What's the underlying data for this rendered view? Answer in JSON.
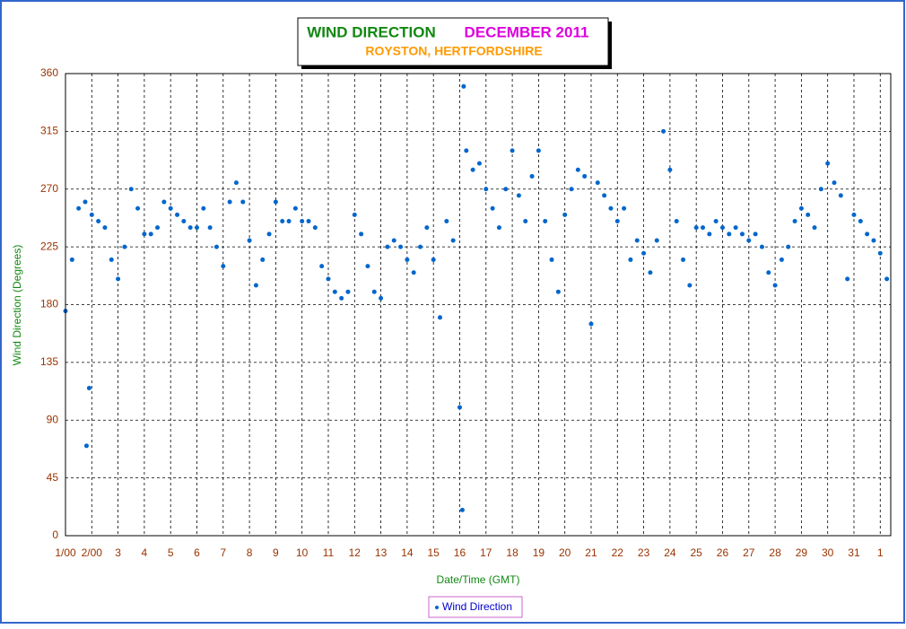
{
  "chart_data": {
    "type": "scatter",
    "title": "WIND DIRECTION",
    "title_colored": "DECEMBER 2011",
    "subtitle": "ROYSTON, HERTFORDSHIRE",
    "xlabel": "Date/Time (GMT)",
    "ylabel": "Wind Direction (Degrees)",
    "grid": true,
    "legend": "bottom",
    "xlim": [
      1,
      32.4
    ],
    "ylim": [
      0,
      360
    ],
    "yticks": [
      0,
      45,
      90,
      135,
      180,
      225,
      270,
      315,
      360
    ],
    "xticks": [
      {
        "value": 1,
        "label": "1/00"
      },
      {
        "value": 2,
        "label": "2/00"
      },
      3,
      4,
      5,
      6,
      7,
      8,
      9,
      10,
      11,
      12,
      13,
      14,
      15,
      16,
      17,
      18,
      19,
      20,
      21,
      22,
      23,
      24,
      25,
      26,
      27,
      28,
      29,
      30,
      31,
      {
        "value": 32,
        "label": "1"
      }
    ],
    "series": [
      {
        "name": "Wind Direction",
        "color": "#0066cc",
        "x": [
          1.0,
          1.25,
          1.5,
          1.75,
          1.8,
          1.9,
          2.0,
          2.25,
          2.5,
          2.75,
          3.0,
          3.25,
          3.5,
          3.75,
          4.0,
          4.25,
          4.5,
          4.75,
          5.0,
          5.25,
          5.5,
          5.75,
          6.0,
          6.25,
          6.5,
          6.75,
          7.0,
          7.25,
          7.5,
          7.75,
          8.0,
          8.25,
          8.5,
          8.75,
          9.0,
          9.25,
          9.5,
          9.75,
          10.0,
          10.25,
          10.5,
          10.75,
          11.0,
          11.25,
          11.5,
          11.75,
          12.0,
          12.25,
          12.5,
          12.75,
          13.0,
          13.25,
          13.5,
          13.75,
          14.0,
          14.25,
          14.5,
          14.75,
          15.0,
          15.25,
          15.5,
          15.75,
          16.0,
          16.1,
          16.15,
          16.25,
          16.5,
          16.75,
          17.0,
          17.25,
          17.5,
          17.75,
          18.0,
          18.25,
          18.5,
          18.75,
          19.0,
          19.25,
          19.5,
          19.75,
          20.0,
          20.25,
          20.5,
          20.75,
          21.0,
          21.25,
          21.5,
          21.75,
          22.0,
          22.25,
          22.5,
          22.75,
          23.0,
          23.25,
          23.5,
          23.75,
          24.0,
          24.25,
          24.5,
          24.75,
          25.0,
          25.25,
          25.5,
          25.75,
          26.0,
          26.25,
          26.5,
          26.75,
          27.0,
          27.25,
          27.5,
          27.75,
          28.0,
          28.25,
          28.5,
          28.75,
          29.0,
          29.25,
          29.5,
          29.75,
          30.0,
          30.25,
          30.5,
          30.75,
          31.0,
          31.25,
          31.5,
          31.75,
          32.0,
          32.25
        ],
        "values": [
          175,
          215,
          255,
          260,
          70,
          115,
          250,
          245,
          240,
          215,
          200,
          225,
          270,
          255,
          235,
          235,
          240,
          260,
          255,
          250,
          245,
          240,
          240,
          255,
          240,
          225,
          210,
          260,
          275,
          260,
          230,
          195,
          215,
          235,
          260,
          245,
          245,
          255,
          245,
          245,
          240,
          210,
          200,
          190,
          185,
          190,
          250,
          235,
          210,
          190,
          185,
          225,
          230,
          225,
          215,
          205,
          225,
          240,
          215,
          170,
          245,
          230,
          100,
          20,
          350,
          300,
          285,
          290,
          270,
          255,
          240,
          270,
          300,
          265,
          245,
          280,
          300,
          245,
          215,
          190,
          250,
          270,
          285,
          280,
          165,
          275,
          265,
          255,
          245,
          255,
          215,
          230,
          220,
          205,
          230,
          315,
          285,
          245,
          215,
          195,
          240,
          240,
          235,
          245,
          240,
          235,
          240,
          235,
          230,
          235,
          225,
          205,
          195,
          215,
          225,
          245,
          255,
          250,
          240,
          270,
          290,
          275,
          265,
          200,
          250,
          245,
          235,
          230,
          220,
          200
        ]
      }
    ]
  }
}
